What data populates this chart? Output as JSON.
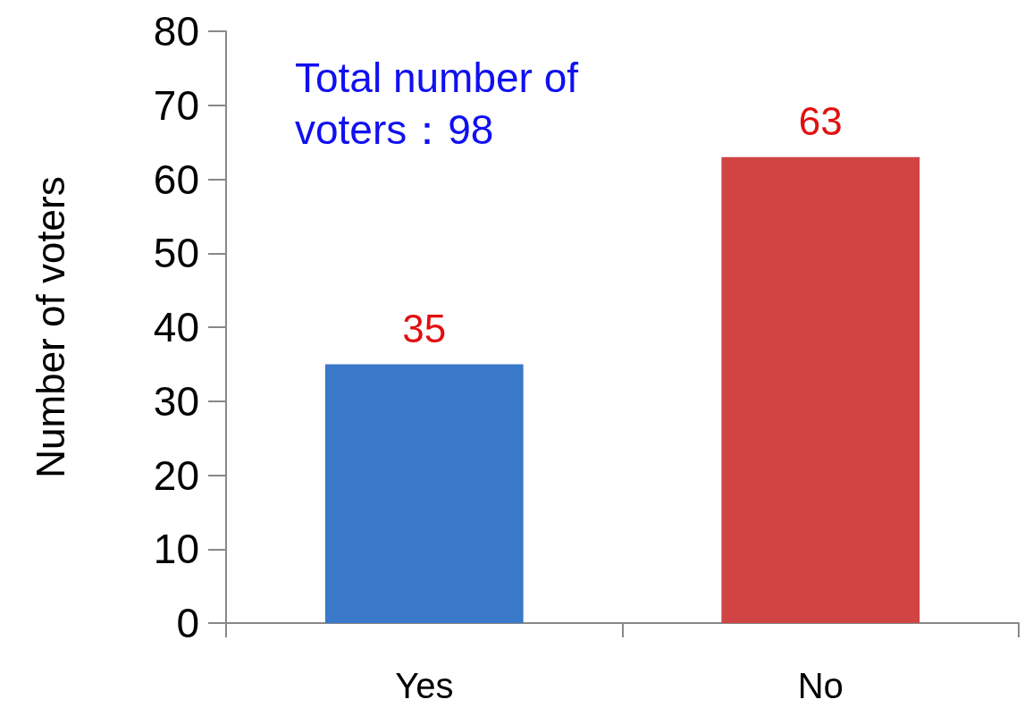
{
  "chart_data": {
    "type": "bar",
    "ylabel": "Number of voters",
    "categories": [
      "Yes",
      "No"
    ],
    "values": [
      35,
      63
    ],
    "colors": [
      "#3a78c9",
      "#d04444"
    ],
    "ylim": [
      0,
      80
    ],
    "yticks": [
      0,
      10,
      20,
      30,
      40,
      50,
      60,
      70,
      80
    ],
    "grid": false,
    "data_labels": true,
    "annotations": [
      "Total number of voters：98"
    ]
  }
}
